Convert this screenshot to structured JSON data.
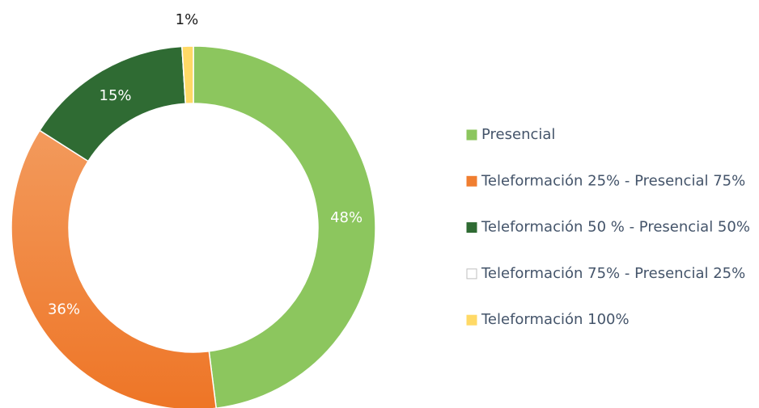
{
  "chart_data": {
    "type": "donut",
    "categories": [
      "Presencial",
      "Teleformación 25% - Presencial 75%",
      "Teleformación 50 % - Presencial 50%",
      "Teleformación 75% - Presencial 25%",
      "Teleformación 100%"
    ],
    "values": [
      48,
      36,
      15,
      0,
      1
    ],
    "value_labels": [
      "48%",
      "36%",
      "15%",
      null,
      "1%"
    ],
    "colors": [
      "#8cc65e",
      "#f07e30",
      "#2f6b33",
      "#ffffff",
      "#ffd966"
    ],
    "legend": "right"
  }
}
